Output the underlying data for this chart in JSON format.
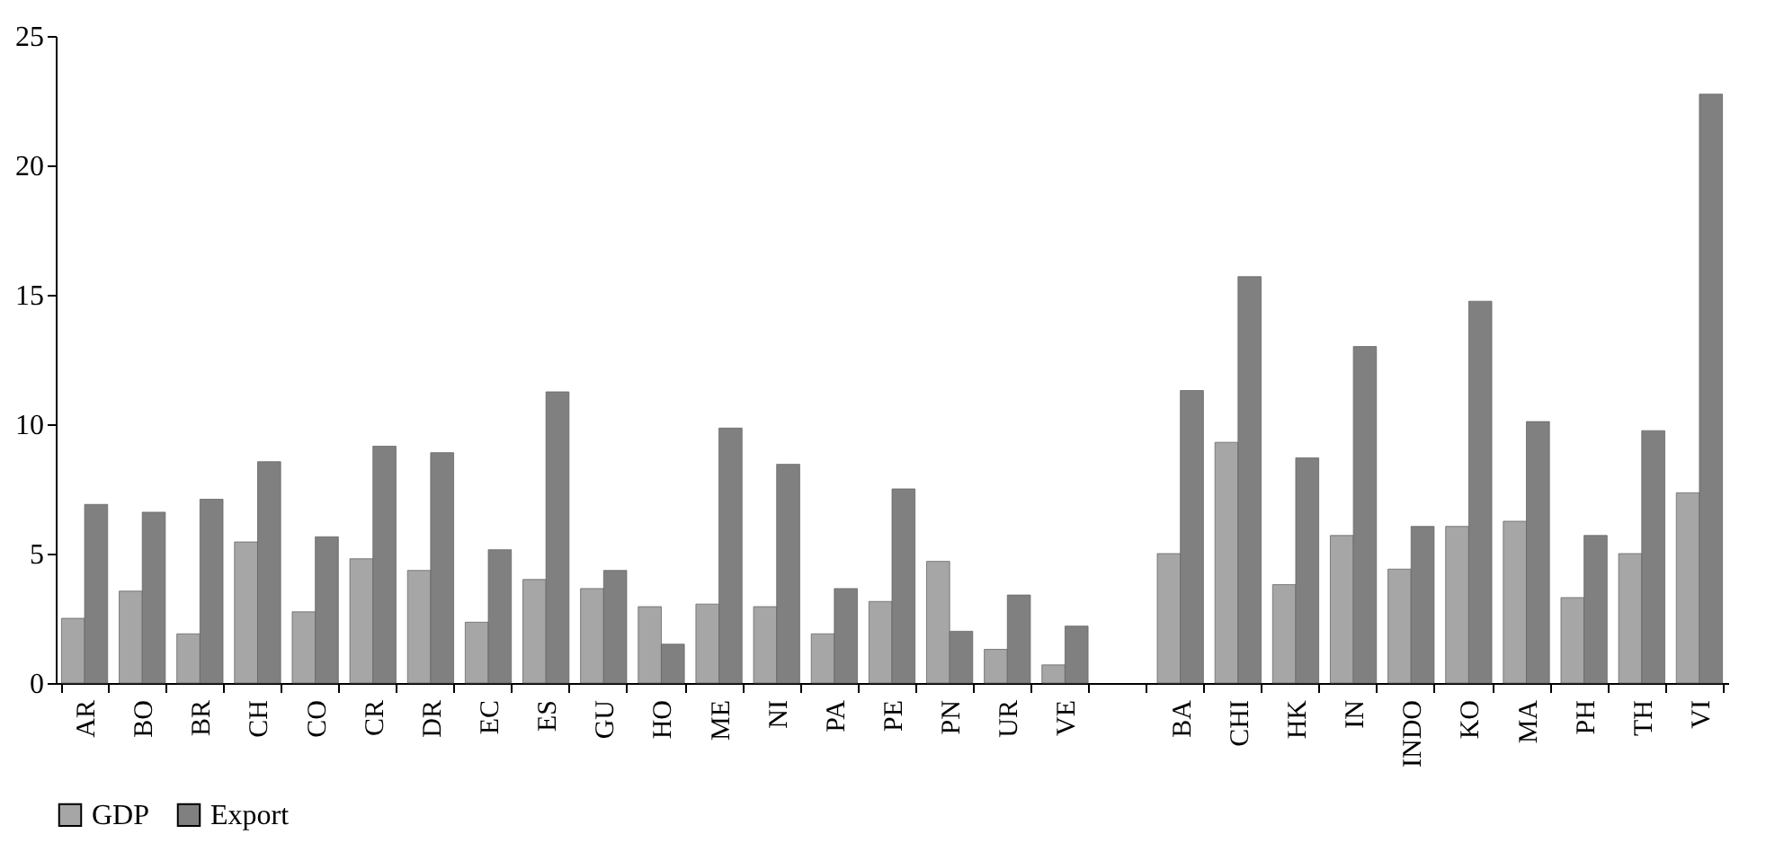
{
  "chart_data": {
    "type": "bar",
    "categories": [
      "AR",
      "BO",
      "BR",
      "CH",
      "CO",
      "CR",
      "DR",
      "EC",
      "ES",
      "GU",
      "HO",
      "ME",
      "NI",
      "PA",
      "PE",
      "PN",
      "UR",
      "VE",
      null,
      "BA",
      "CHI",
      "HK",
      "IN",
      "INDO",
      "KO",
      "MA",
      "PH",
      "TH",
      "VI"
    ],
    "series": [
      {
        "name": "GDP",
        "color": "#a6a6a6",
        "values": [
          2.5,
          3.55,
          1.9,
          5.45,
          2.75,
          4.8,
          4.35,
          2.35,
          4.0,
          3.65,
          2.95,
          3.05,
          2.95,
          1.9,
          3.15,
          4.7,
          1.3,
          0.7,
          null,
          5.0,
          9.3,
          3.8,
          5.7,
          4.4,
          6.05,
          6.25,
          3.3,
          5.0,
          7.35
        ]
      },
      {
        "name": "Export",
        "color": "#808080",
        "values": [
          6.9,
          6.6,
          7.1,
          8.55,
          5.65,
          9.15,
          8.9,
          5.15,
          11.25,
          4.35,
          1.5,
          9.85,
          8.45,
          3.65,
          7.5,
          2.0,
          3.4,
          2.2,
          null,
          11.3,
          15.7,
          8.7,
          13.0,
          6.05,
          14.75,
          10.1,
          5.7,
          9.75,
          22.75
        ]
      }
    ],
    "ylim": [
      0,
      25
    ],
    "yticks": [
      0,
      5,
      10,
      15,
      20,
      25
    ],
    "legend": "bottom"
  }
}
